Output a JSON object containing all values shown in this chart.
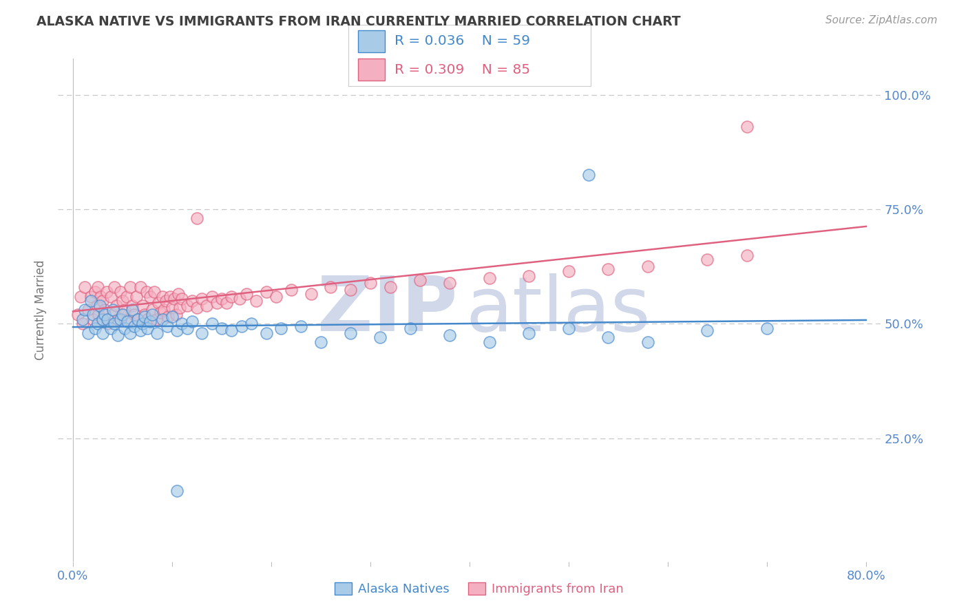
{
  "title": "ALASKA NATIVE VS IMMIGRANTS FROM IRAN CURRENTLY MARRIED CORRELATION CHART",
  "source": "Source: ZipAtlas.com",
  "ylabel": "Currently Married",
  "background_color": "#ffffff",
  "grid_color": "#c8c8c8",
  "blue_fill": "#a8cce8",
  "blue_edge": "#4488cc",
  "pink_fill": "#f4b0c0",
  "pink_edge": "#e06080",
  "blue_line": "#4488cc",
  "pink_line": "#e06080",
  "title_color": "#404040",
  "tick_color": "#5588cc",
  "watermark_color": "#d0d8ea",
  "axis_label_color": "#777777",
  "alaska_label": "Alaska Natives",
  "iran_label": "Immigrants from Iran",
  "legend_r1": "R = 0.036",
  "legend_n1": "N = 59",
  "legend_r2": "R = 0.309",
  "legend_n2": "N = 85"
}
